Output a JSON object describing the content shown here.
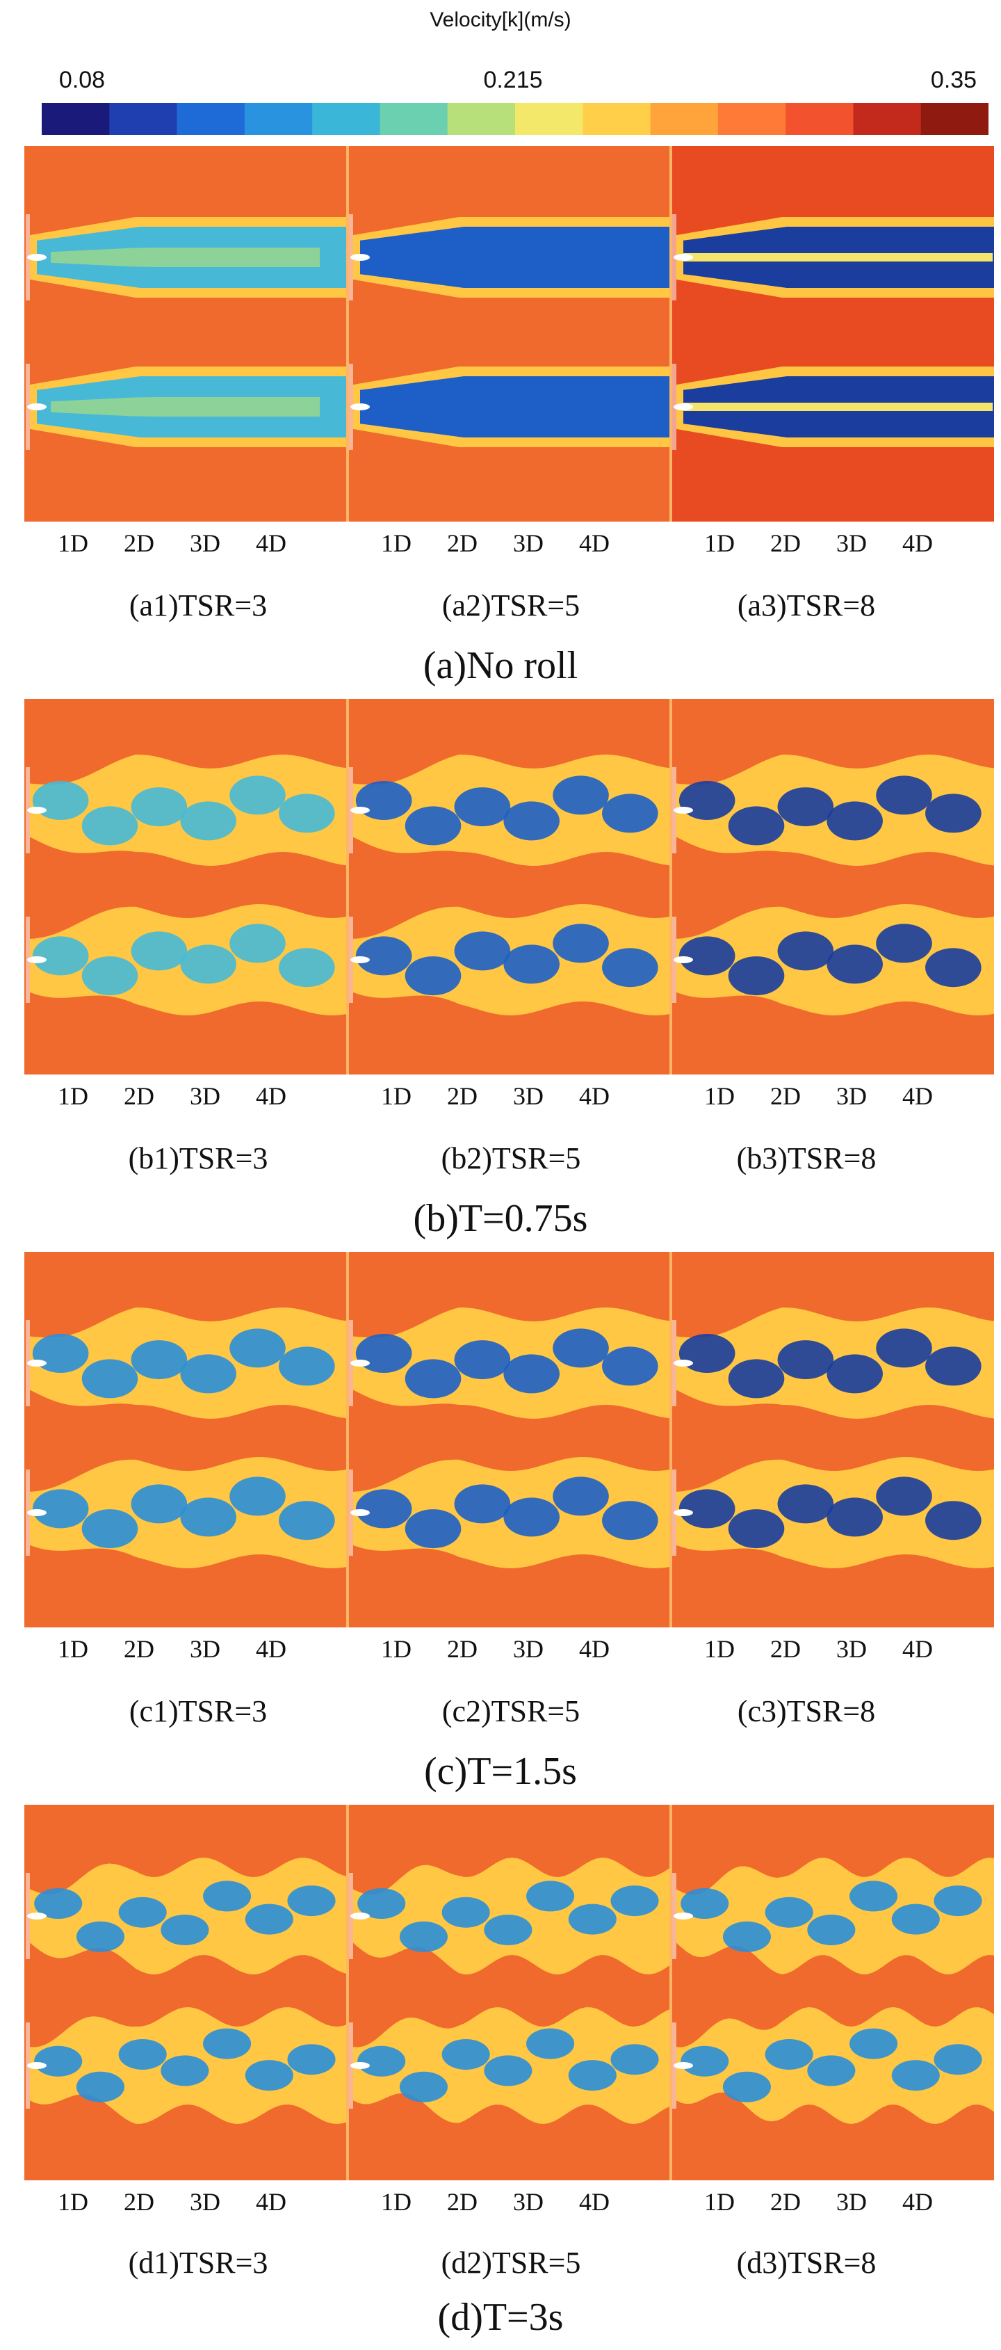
{
  "legend": {
    "title": "Velocity[k](m/s)",
    "ticks": [
      "0.08",
      "0.215",
      "0.35"
    ],
    "colors": [
      "#1a1a7a",
      "#1f3fb0",
      "#1e6ad6",
      "#2a93e0",
      "#39b6d8",
      "#6ad0b0",
      "#b8e07a",
      "#f4e86a",
      "#ffcf4a",
      "#ffa43a",
      "#ff7a36",
      "#f2532e",
      "#c42a1c",
      "#8e1a10"
    ]
  },
  "distance_ticks": [
    "1D",
    "2D",
    "3D",
    "4D"
  ],
  "groups": [
    {
      "title": "(a)No roll",
      "subs": [
        "(a1)TSR=3",
        "(a2)TSR=5",
        "(a3)TSR=8"
      ],
      "state": "steady"
    },
    {
      "title": "(b)T=0.75s",
      "subs": [
        "(b1)TSR=3",
        "(b2)TSR=5",
        "(b3)TSR=8"
      ],
      "state": "t075"
    },
    {
      "title": "(c)T=1.5s",
      "subs": [
        "(c1)TSR=3",
        "(c2)TSR=5",
        "(c3)TSR=8"
      ],
      "state": "t15"
    },
    {
      "title": "(d)T=3s",
      "subs": [
        "(d1)TSR=3",
        "(d2)TSR=5",
        "(d3)TSR=8"
      ],
      "state": "t3"
    }
  ]
}
